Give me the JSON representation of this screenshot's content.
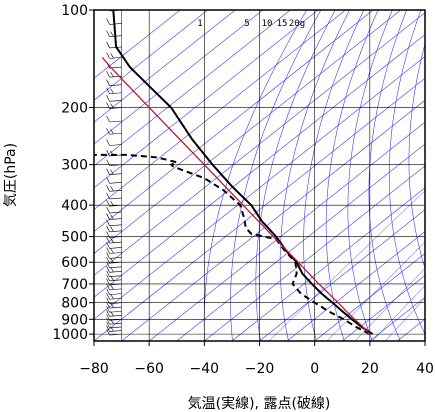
{
  "chart_data": {
    "type": "line",
    "subtype": "skew-T log-P thermodynamic diagram",
    "xlabel": "気温(実線), 露点(破線)",
    "ylabel": "気圧(hPa)",
    "x_ticks": [
      "−80",
      "−60",
      "−40",
      "−20",
      "0",
      "20",
      "40"
    ],
    "y_ticks": [
      "100",
      "200",
      "300",
      "400",
      "500",
      "600",
      "700",
      "800",
      "900",
      "1000"
    ],
    "xlim": [
      -80,
      40
    ],
    "ylim": [
      1050,
      100
    ],
    "y_scale": "log",
    "grid": true,
    "mixing_ratio_labels": [
      "1",
      "5",
      "10",
      "15",
      "20g"
    ],
    "series": [
      {
        "role": "temperature",
        "style": "solid",
        "color": "#000000",
        "points": [
          [
            1000,
            21
          ],
          [
            950,
            17
          ],
          [
            900,
            13.5
          ],
          [
            850,
            10
          ],
          [
            800,
            6.5
          ],
          [
            750,
            2.5
          ],
          [
            700,
            -1
          ],
          [
            650,
            -4.5
          ],
          [
            600,
            -6.5
          ],
          [
            550,
            -10.5
          ],
          [
            500,
            -14
          ],
          [
            450,
            -19
          ],
          [
            400,
            -23
          ],
          [
            350,
            -30
          ],
          [
            300,
            -37
          ],
          [
            250,
            -44.5
          ],
          [
            200,
            -52
          ],
          [
            175,
            -59
          ],
          [
            150,
            -67
          ],
          [
            130,
            -72
          ],
          [
            100,
            -73
          ]
        ]
      },
      {
        "role": "dewpoint",
        "style": "dashed",
        "color": "#000000",
        "points": [
          [
            1000,
            20
          ],
          [
            950,
            15
          ],
          [
            900,
            10.5
          ],
          [
            850,
            5
          ],
          [
            800,
            0
          ],
          [
            750,
            -5
          ],
          [
            700,
            -8
          ],
          [
            650,
            -6.5
          ],
          [
            600,
            -7
          ],
          [
            550,
            -11
          ],
          [
            510,
            -14
          ],
          [
            490,
            -23
          ],
          [
            470,
            -25
          ],
          [
            440,
            -25.5
          ],
          [
            400,
            -27
          ],
          [
            360,
            -33
          ],
          [
            330,
            -40
          ],
          [
            305,
            -51
          ],
          [
            300,
            -52
          ],
          [
            295,
            -50
          ],
          [
            285,
            -57
          ],
          [
            280,
            -68
          ],
          [
            280,
            -80
          ]
        ]
      },
      {
        "role": "parcel",
        "style": "solid",
        "color": "#c0163f",
        "points": [
          [
            1000,
            20
          ],
          [
            950,
            17.5
          ],
          [
            900,
            14.5
          ],
          [
            850,
            11.5
          ],
          [
            800,
            8.5
          ],
          [
            700,
            1.5
          ],
          [
            600,
            -6
          ],
          [
            500,
            -15
          ],
          [
            400,
            -26
          ],
          [
            300,
            -40
          ],
          [
            250,
            -49
          ],
          [
            200,
            -60
          ],
          [
            150,
            -74
          ],
          [
            140,
            -77
          ]
        ]
      }
    ],
    "wind_barbs": {
      "x_position": -70,
      "pressures": [
        100,
        110,
        120,
        130,
        140,
        150,
        160,
        170,
        180,
        190,
        200,
        220,
        240,
        260,
        280,
        300,
        320,
        340,
        360,
        380,
        400,
        420,
        440,
        460,
        480,
        500,
        520,
        540,
        560,
        580,
        600,
        620,
        640,
        660,
        680,
        700,
        725,
        750,
        775,
        800,
        825,
        850,
        875,
        900,
        925,
        950,
        975,
        1000
      ]
    }
  }
}
